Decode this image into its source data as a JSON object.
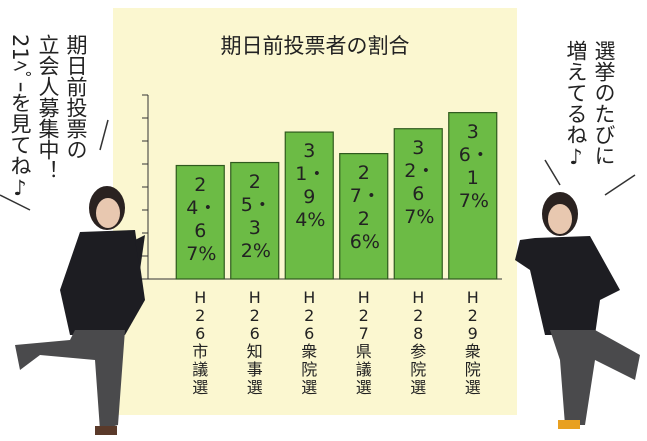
{
  "chart_data": {
    "type": "bar",
    "title": "期日前投票者の割合",
    "categories": [
      "H26市議選",
      "H26知事選",
      "H26衆院選",
      "H27県議選",
      "H28参院選",
      "H29衆院選"
    ],
    "values": [
      24.67,
      25.32,
      31.94,
      27.26,
      32.67,
      36.17
    ],
    "value_labels": [
      "24・67%",
      "25・32%",
      "31・94%",
      "27・26%",
      "32・67%",
      "36・17%"
    ],
    "color": "#6cbb45",
    "ylim": [
      0,
      40
    ],
    "yticks": [
      0,
      5,
      10,
      15,
      20,
      25,
      30,
      35,
      40
    ]
  },
  "speech": {
    "left": [
      "期日前投票の",
      "立会人募集中！",
      "21ﾍﾟｰを見てね♪"
    ],
    "right": [
      "選挙のたびに",
      "増えてるね♪"
    ]
  }
}
